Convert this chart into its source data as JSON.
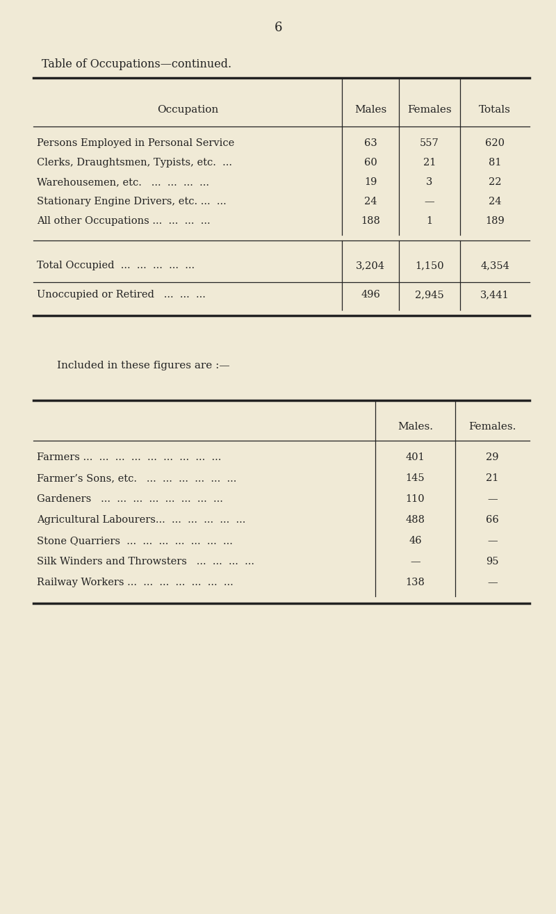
{
  "page_number": "6",
  "title": "Table of Occupations—continued.",
  "background_color": "#f0ead6",
  "text_color": "#222222",
  "table1": {
    "headers": [
      "Occupation",
      "Males",
      "Females",
      "Totals"
    ],
    "rows": [
      [
        "Persons Employed in Personal Service",
        "63",
        "557",
        "620"
      ],
      [
        "Clerks, Draughtsmen, Typists, etc.  ...",
        "60",
        "21",
        "81"
      ],
      [
        "Warehousemen, etc.   ...  ...  ...  ...",
        "19",
        "3",
        "22"
      ],
      [
        "Stationary Engine Drivers, etc. ...  ...",
        "24",
        "—",
        "24"
      ],
      [
        "All other Occupations ...  ...  ...  ...",
        "188",
        "1",
        "189"
      ]
    ],
    "totals": [
      [
        "Total Occupied  ...  ...  ...  ...  ...",
        "3,204",
        "1,150",
        "4,354"
      ],
      [
        "Unoccupied or Retired   ...  ...  ...",
        "496",
        "2,945",
        "3,441"
      ]
    ]
  },
  "included_text": "Included in these figures are :—",
  "table2": {
    "rows": [
      [
        "Farmers ...  ...  ...  ...  ...  ...  ...  ...  ...",
        "401",
        "29"
      ],
      [
        "Farmer’s Sons, etc.   ...  ...  ...  ...  ...  ...",
        "145",
        "21"
      ],
      [
        "Gardeners   ...  ...  ...  ...  ...  ...  ...  ...",
        "110",
        "—"
      ],
      [
        "Agricultural Labourers...  ...  ...  ...  ...  ...",
        "488",
        "66"
      ],
      [
        "Stone Quarriers  ...  ...  ...  ...  ...  ...  ...",
        "46",
        "—"
      ],
      [
        "Silk Winders and Throwsters   ...  ...  ...  ...",
        "—",
        "95"
      ],
      [
        "Railway Workers ...  ...  ...  ...  ...  ...  ...",
        "138",
        "—"
      ]
    ]
  }
}
